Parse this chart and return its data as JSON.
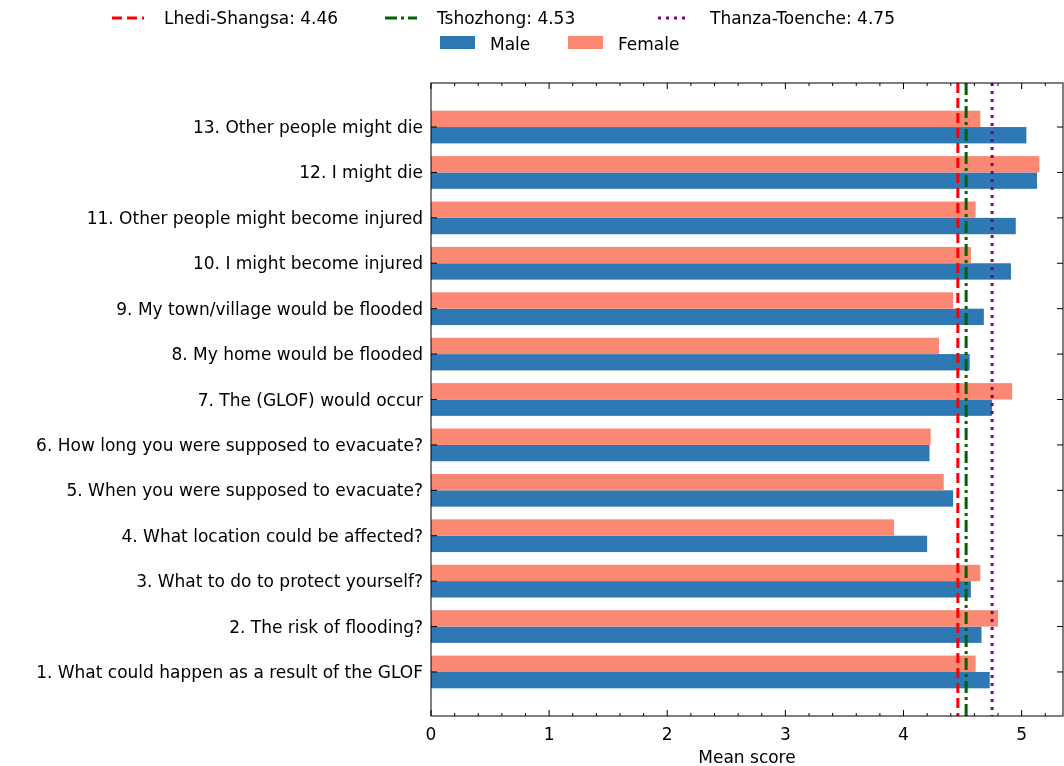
{
  "chart_data": {
    "type": "bar",
    "orientation": "horizontal",
    "xlabel": "Mean score",
    "categories": [
      "13. Other people might die",
      "12. I might die",
      "11. Other people might become injured",
      "10. I might become injured",
      "9. My town/village would be flooded",
      "8. My home would be flooded",
      "7. The (GLOF) would occur",
      "6. How long you were supposed to evacuate?",
      "5. When you were supposed to evacuate?",
      "4. What location could be affected?",
      "3. What to do to protect yourself?",
      "2. The risk of flooding?",
      "1. What could happen as a result of the GLOF"
    ],
    "series": [
      {
        "name": "Male",
        "color": "#2e78b4",
        "values": [
          5.04,
          5.13,
          4.95,
          4.91,
          4.68,
          4.56,
          4.75,
          4.22,
          4.42,
          4.2,
          4.57,
          4.66,
          4.73
        ]
      },
      {
        "name": "Female",
        "color": "#fa8872",
        "values": [
          4.65,
          5.15,
          4.61,
          4.57,
          4.42,
          4.3,
          4.92,
          4.23,
          4.34,
          3.92,
          4.65,
          4.8,
          4.61
        ]
      }
    ],
    "xlim": [
      0,
      5.35
    ],
    "xticks": [
      0,
      {
        "value": 0.2,
        "label": null
      },
      {
        "value": 0.4,
        "label": null
      },
      {
        "value": 0.6,
        "label": null
      },
      {
        "value": 0.8,
        "label": null
      },
      1,
      {
        "value": 1.2,
        "label": null
      },
      {
        "value": 1.4,
        "label": null
      },
      {
        "value": 1.6,
        "label": null
      },
      {
        "value": 1.8,
        "label": null
      },
      2,
      {
        "value": 2.2,
        "label": null
      },
      {
        "value": 2.4,
        "label": null
      },
      {
        "value": 2.6,
        "label": null
      },
      {
        "value": 2.8,
        "label": null
      },
      3,
      {
        "value": 3.2,
        "label": null
      },
      {
        "value": 3.4,
        "label": null
      },
      {
        "value": 3.6,
        "label": null
      },
      {
        "value": 3.8,
        "label": null
      },
      4,
      {
        "value": 4.2,
        "label": null
      },
      {
        "value": 4.4,
        "label": null
      },
      {
        "value": 4.6,
        "label": null
      },
      {
        "value": 4.8,
        "label": null
      },
      5,
      {
        "value": 5.2,
        "label": null
      }
    ],
    "ref_lines": [
      {
        "axis": "x",
        "value": 4.46,
        "label": "Lhedi-Shangsa: 4.46",
        "color": "#ff0000",
        "line_style": "dashed"
      },
      {
        "axis": "x",
        "value": 4.53,
        "label": "Tshozhong: 4.53",
        "color": "#006400",
        "line_style": "dashdot"
      },
      {
        "axis": "x",
        "value": 4.75,
        "label": "Thanza-Toenche: 4.75",
        "color": "#800080",
        "line_style": "dotted"
      }
    ],
    "legend": "top",
    "grid": false
  }
}
